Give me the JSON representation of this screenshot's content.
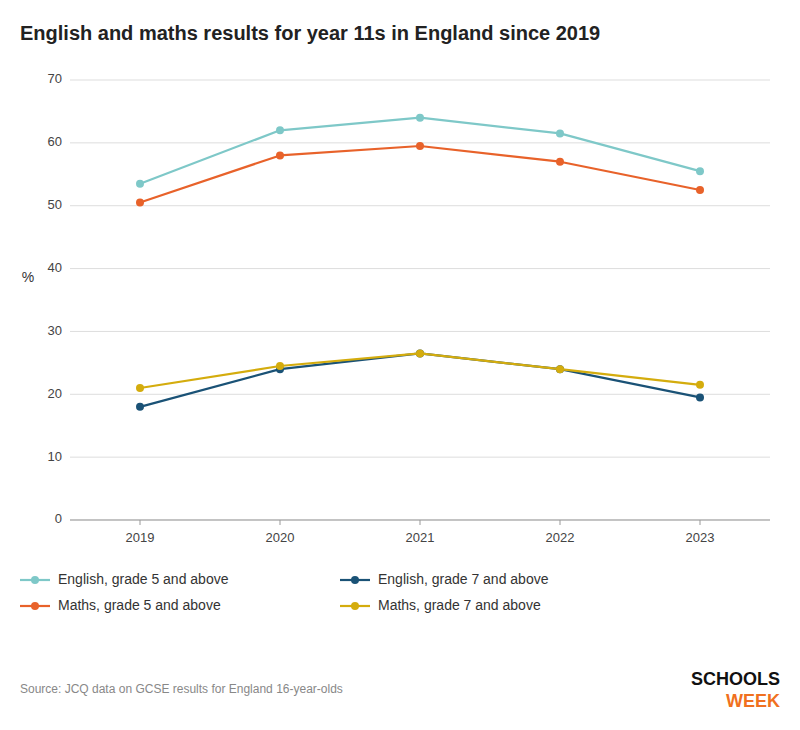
{
  "chart_data": {
    "type": "line",
    "title": "English and maths results for year 11s in England since 2019",
    "y_label": "%",
    "x": [
      2019,
      2020,
      2021,
      2022,
      2023
    ],
    "xlim": [
      2018.5,
      2023.5
    ],
    "xticks": [
      2019,
      2020,
      2021,
      2022,
      2023
    ],
    "ylim": [
      0,
      70
    ],
    "yticks": [
      0,
      10,
      20,
      30,
      40,
      50,
      60,
      70
    ],
    "grid": true,
    "legend": "bottom",
    "marker": "circle",
    "series": [
      {
        "name": "English, grade 5 and above",
        "color": "#7EC8C8",
        "values": [
          53.5,
          62.0,
          64.0,
          61.5,
          55.5
        ]
      },
      {
        "name": "English, grade 7 and above",
        "color": "#1A5276",
        "values": [
          18.0,
          24.0,
          26.5,
          24.0,
          19.5
        ]
      },
      {
        "name": "Maths, grade 5 and above",
        "color": "#E8622A",
        "values": [
          50.5,
          58.0,
          59.5,
          57.0,
          52.5
        ]
      },
      {
        "name": "Maths, grade 7 and above",
        "color": "#D4AC0D",
        "values": [
          21.0,
          24.5,
          26.5,
          24.0,
          21.5
        ]
      }
    ],
    "annotations": [
      {
        "text": "Source: JCQ data on GCSE results for England 16-year-olds",
        "color": "#888888"
      },
      {
        "text": "SCHOOLS",
        "color": "#111111"
      },
      {
        "text": "WEEK",
        "color": "#F07020"
      }
    ]
  }
}
